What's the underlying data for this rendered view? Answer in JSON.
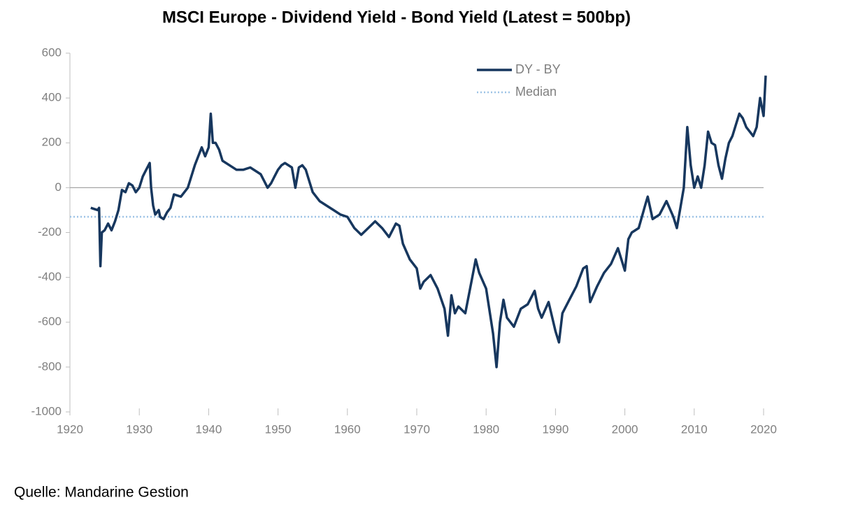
{
  "chart_data": {
    "type": "line",
    "title": "MSCI Europe - Dividend Yield - Bond Yield (Latest = 500bp)",
    "source": "Quelle: Mandarine Gestion",
    "x": [
      1923,
      1923.5,
      1924,
      1924.2,
      1924.4,
      1924.6,
      1925,
      1925.5,
      1926,
      1926.5,
      1927,
      1927.5,
      1928,
      1928.5,
      1929,
      1929.5,
      1930,
      1930.5,
      1931,
      1931.5,
      1931.7,
      1932,
      1932.3,
      1932.8,
      1933,
      1933.5,
      1934,
      1934.5,
      1935,
      1936,
      1937,
      1938,
      1939,
      1939.5,
      1940,
      1940.3,
      1940.6,
      1941,
      1941.5,
      1942,
      1943,
      1944,
      1945,
      1946,
      1947,
      1947.5,
      1948,
      1948.5,
      1949,
      1949.5,
      1950,
      1950.5,
      1951,
      1952,
      1952.5,
      1953,
      1953.5,
      1954,
      1954.5,
      1955,
      1956,
      1957,
      1958,
      1959,
      1960,
      1961,
      1962,
      1963,
      1964,
      1965,
      1966,
      1967,
      1967.5,
      1968,
      1969,
      1970,
      1970.5,
      1971,
      1972,
      1973,
      1974,
      1974.5,
      1975,
      1975.5,
      1976,
      1977,
      1978,
      1978.5,
      1979,
      1980,
      1981,
      1981.5,
      1982,
      1982.5,
      1983,
      1984,
      1985,
      1986,
      1987,
      1987.5,
      1988,
      1989,
      1990,
      1990.5,
      1991,
      1992,
      1993,
      1994,
      1994.5,
      1995,
      1996,
      1997,
      1998,
      1999,
      2000,
      2000.5,
      2001,
      2002,
      2003,
      2003.3,
      2004,
      2005,
      2006,
      2007,
      2007.5,
      2008,
      2008.5,
      2009,
      2009.5,
      2010,
      2010.5,
      2011,
      2011.5,
      2012,
      2012.5,
      2013,
      2013.5,
      2014,
      2014.5,
      2015,
      2015.5,
      2016,
      2016.5,
      2017,
      2017.5,
      2018,
      2018.5,
      2019,
      2019.5,
      2020,
      2020.3
    ],
    "series": [
      {
        "name": "DY - BY",
        "color": "#17375e",
        "values": [
          -90,
          -95,
          -100,
          -90,
          -350,
          -200,
          -190,
          -160,
          -190,
          -150,
          -100,
          -10,
          -20,
          20,
          10,
          -20,
          0,
          50,
          80,
          110,
          0,
          -80,
          -120,
          -100,
          -130,
          -140,
          -110,
          -90,
          -30,
          -40,
          0,
          100,
          180,
          140,
          180,
          330,
          200,
          200,
          170,
          120,
          100,
          80,
          80,
          90,
          70,
          60,
          30,
          0,
          20,
          50,
          80,
          100,
          110,
          90,
          0,
          90,
          100,
          80,
          30,
          -20,
          -60,
          -80,
          -100,
          -120,
          -130,
          -180,
          -210,
          -180,
          -150,
          -180,
          -220,
          -160,
          -170,
          -250,
          -320,
          -360,
          -450,
          -420,
          -390,
          -450,
          -540,
          -660,
          -480,
          -560,
          -530,
          -560,
          -400,
          -320,
          -380,
          -450,
          -650,
          -800,
          -600,
          -500,
          -580,
          -620,
          -540,
          -520,
          -460,
          -540,
          -580,
          -510,
          -640,
          -690,
          -560,
          -500,
          -440,
          -360,
          -350,
          -510,
          -440,
          -380,
          -340,
          -270,
          -370,
          -230,
          -200,
          -180,
          -70,
          -40,
          -140,
          -120,
          -60,
          -130,
          -180,
          -90,
          0,
          270,
          100,
          0,
          50,
          0,
          100,
          250,
          200,
          190,
          100,
          40,
          130,
          200,
          230,
          280,
          330,
          310,
          270,
          250,
          230,
          270,
          400,
          320,
          500
        ]
      }
    ],
    "reference_lines": [
      {
        "name": "Median",
        "value": -130,
        "color": "#9dc3e6"
      }
    ],
    "xlim": [
      1920,
      2020
    ],
    "xticks": [
      1920,
      1930,
      1940,
      1950,
      1960,
      1970,
      1980,
      1990,
      2000,
      2010,
      2020
    ],
    "ylim": [
      -1000,
      600
    ],
    "yticks": [
      -1000,
      -800,
      -600,
      -400,
      -200,
      0,
      200,
      400,
      600
    ]
  }
}
